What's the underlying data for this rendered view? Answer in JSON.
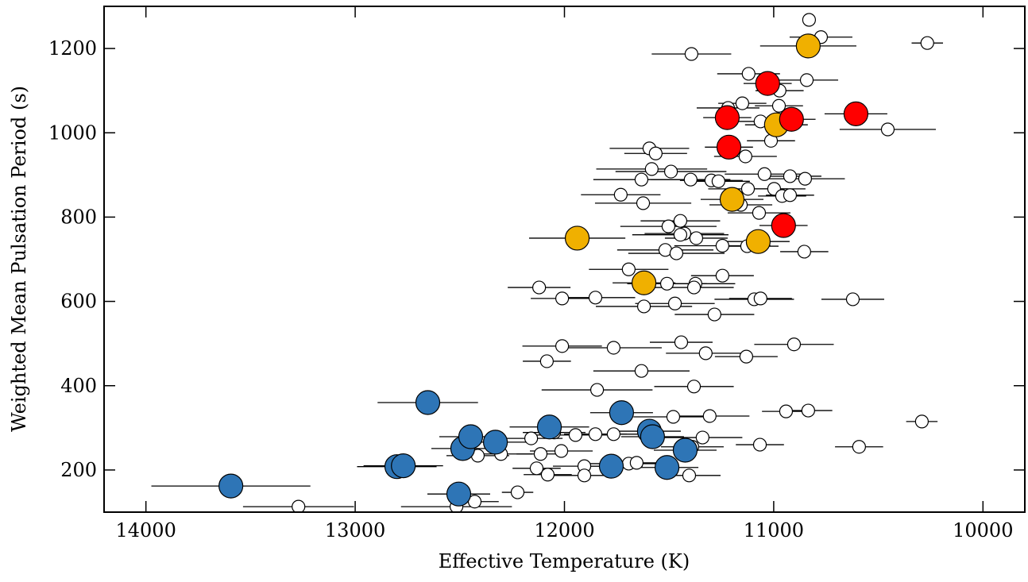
{
  "chart_data": {
    "type": "scatter",
    "xlabel": "Effective Temperature (K)",
    "ylabel": "Weighted Mean Pulsation Period (s)",
    "xlim": [
      14200,
      9800
    ],
    "ylim": [
      100,
      1300
    ],
    "xticks": [
      14000,
      13000,
      12000,
      11000,
      10000
    ],
    "yticks": [
      200,
      400,
      600,
      800,
      1000,
      1200
    ],
    "series": [
      {
        "color": "#ffffff",
        "marker_size": 8,
        "x": [
          10831,
          10774,
          10266,
          11393,
          11120,
          10842,
          10972,
          11150,
          11218,
          10975,
          11063,
          10455,
          11013,
          11594,
          11564,
          11135,
          11491,
          11583,
          11044,
          10922,
          10850,
          11632,
          11397,
          11298,
          11264,
          11123,
          10998,
          11731,
          10960,
          10922,
          11624,
          11157,
          11070,
          11446,
          11503,
          11427,
          11446,
          11370,
          11245,
          11127,
          11518,
          11465,
          10854,
          11693,
          11245,
          11374,
          11381,
          11510,
          12121,
          12011,
          11852,
          11093,
          11063,
          10622,
          11472,
          11620,
          11283,
          12011,
          11765,
          11442,
          10903,
          11325,
          11131,
          12084,
          11632,
          11844,
          11381,
          10941,
          10835,
          10292,
          10592,
          11066,
          11306,
          11480,
          12049,
          12159,
          11947,
          11852,
          11765,
          11340,
          11389,
          12114,
          12015,
          12303,
          12414,
          12133,
          11905,
          11693,
          11655,
          12080,
          11905,
          11404,
          12224,
          12429,
          13271,
          12516
        ],
        "y": [
          1268,
          1227,
          1213,
          1187,
          1140,
          1125,
          1100,
          1070,
          1059,
          1064,
          1027,
          1008,
          981,
          963,
          951,
          944,
          908,
          914,
          902,
          897,
          891,
          889,
          889,
          887,
          885,
          867,
          867,
          853,
          850,
          852,
          833,
          829,
          810,
          791,
          778,
          761,
          758,
          750,
          732,
          731,
          722,
          714,
          718,
          676,
          661,
          642,
          633,
          642,
          633,
          607,
          609,
          605,
          607,
          605,
          595,
          588,
          569,
          494,
          490,
          503,
          498,
          477,
          469,
          458,
          435,
          390,
          398,
          339,
          341,
          315,
          255,
          260,
          328,
          326,
          289,
          275,
          283,
          285,
          285,
          277,
          255,
          238,
          245,
          238,
          234,
          204,
          209,
          215,
          217,
          189,
          187,
          187,
          147,
          125,
          113,
          113
        ],
        "xerr": [
          0,
          150,
          75,
          190,
          150,
          150,
          115,
          115,
          150,
          115,
          150,
          230,
          115,
          190,
          150,
          150,
          265,
          265,
          190,
          150,
          190,
          230,
          190,
          150,
          150,
          190,
          150,
          190,
          115,
          115,
          230,
          150,
          150,
          190,
          230,
          190,
          230,
          150,
          230,
          150,
          230,
          230,
          115,
          190,
          150,
          190,
          190,
          190,
          150,
          150,
          190,
          190,
          150,
          150,
          190,
          230,
          190,
          190,
          230,
          150,
          190,
          190,
          150,
          115,
          230,
          265,
          190,
          115,
          115,
          75,
          115,
          115,
          190,
          190,
          150,
          150,
          190,
          150,
          150,
          190,
          150,
          115,
          150,
          150,
          150,
          115,
          150,
          190,
          150,
          115,
          150,
          150,
          75,
          115,
          265,
          265
        ]
      },
      {
        "color": "#2e75b6",
        "marker_size": 15,
        "x": [
          13594,
          12653,
          12801,
          12770,
          12505,
          12486,
          12448,
          12330,
          12072,
          11727,
          11776,
          11594,
          11579,
          11510,
          11423
        ],
        "y": [
          162,
          360,
          208,
          210,
          143,
          251,
          279,
          266,
          302,
          336,
          209,
          292,
          279,
          206,
          247
        ],
        "xerr": [
          380,
          240,
          190,
          190,
          150,
          150,
          150,
          150,
          190,
          150,
          150,
          150,
          150,
          150,
          150
        ]
      },
      {
        "color": "#f0b000",
        "marker_size": 15,
        "x": [
          10835,
          10987,
          11199,
          11939,
          11074,
          11620
        ],
        "y": [
          1206,
          1019,
          842,
          750,
          742,
          644
        ],
        "xerr": [
          230,
          150,
          150,
          230,
          150,
          150
        ]
      },
      {
        "color": "#ff0000",
        "marker_size": 15,
        "x": [
          11029,
          11222,
          10915,
          10607,
          11214,
          10953
        ],
        "y": [
          1117,
          1036,
          1032,
          1045,
          966,
          780
        ],
        "xerr": [
          115,
          115,
          115,
          150,
          115,
          115
        ]
      }
    ]
  }
}
